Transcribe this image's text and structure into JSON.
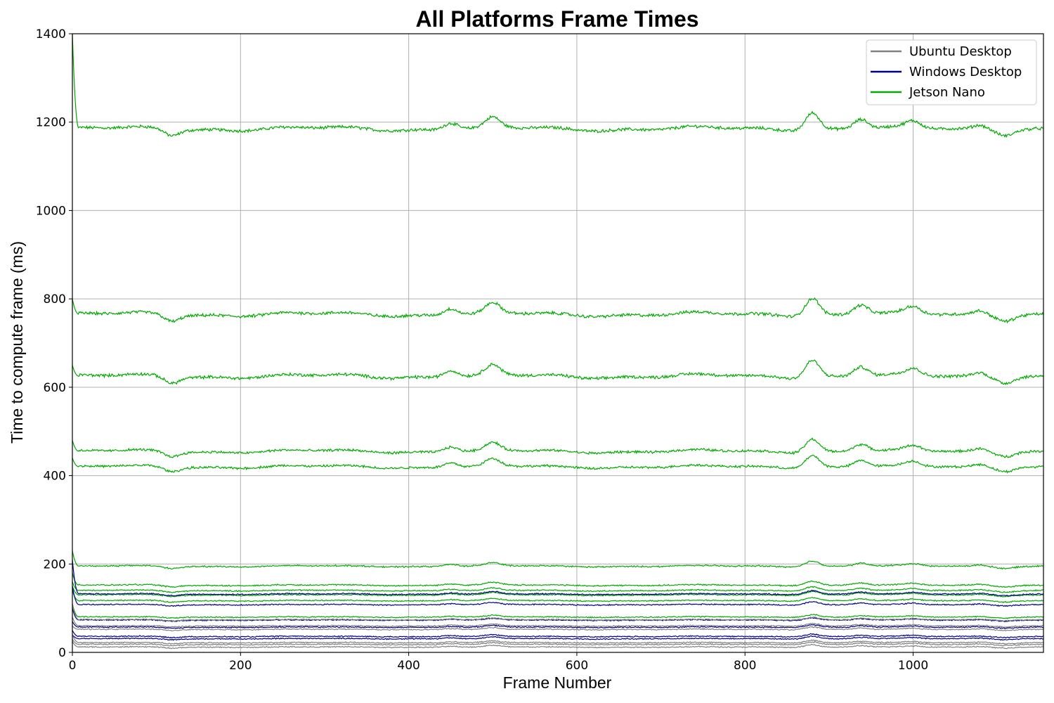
{
  "chart_data": {
    "type": "line",
    "title": "All Platforms Frame Times",
    "xlabel": "Frame Number",
    "ylabel": "Time to compute frame (ms)",
    "xlim": [
      0,
      1155
    ],
    "ylim": [
      0,
      1400
    ],
    "xticks": [
      0,
      200,
      400,
      600,
      800,
      1000
    ],
    "yticks": [
      0,
      200,
      400,
      600,
      800,
      1000,
      1200,
      1400
    ],
    "grid": true,
    "legend_position": "top-right",
    "legend": [
      {
        "name": "Ubuntu Desktop",
        "color": "#808080"
      },
      {
        "name": "Windows Desktop",
        "color": "#00008b"
      },
      {
        "name": "Jetson Nano",
        "color": "#00aa00"
      }
    ],
    "series_groups": [
      {
        "name": "Jetson Nano",
        "color": "#00aa00",
        "start_values": [
          1400,
          800,
          650,
          480,
          440,
          230,
          180,
          160,
          150,
          140,
          110
        ],
        "steady_values": [
          1185,
          765,
          625,
          455,
          420,
          195,
          152,
          140,
          130,
          117,
          80
        ]
      },
      {
        "name": "Windows Desktop",
        "color": "#00008b",
        "start_values": [
          210,
          150,
          100,
          70,
          50,
          40
        ],
        "steady_values": [
          132,
          108,
          73,
          57,
          36,
          31
        ]
      },
      {
        "name": "Ubuntu Desktop",
        "color": "#808080",
        "start_values": [
          110,
          80,
          60,
          40,
          30,
          25
        ],
        "steady_values": [
          74,
          60,
          52,
          22,
          18,
          12
        ]
      }
    ],
    "common_features": [
      {
        "x": 118,
        "dy": -14
      },
      {
        "x": 450,
        "dy": 16
      },
      {
        "x": 500,
        "dy": 22
      },
      {
        "x": 880,
        "dy": 40
      },
      {
        "x": 938,
        "dy": 22
      },
      {
        "x": 1000,
        "dy": 14
      },
      {
        "x": 1080,
        "dy": 10
      },
      {
        "x": 1110,
        "dy": -10
      }
    ]
  }
}
